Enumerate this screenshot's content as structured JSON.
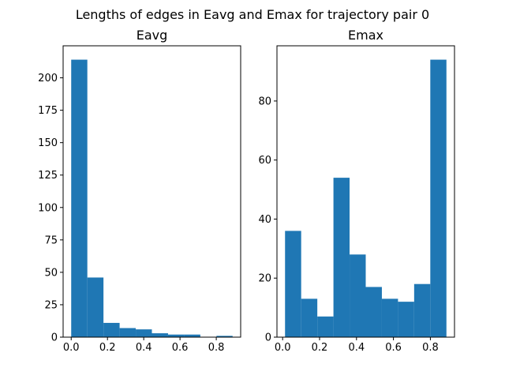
{
  "title": "Lengths of edges in Eavg and Emax for trajectory pair 0",
  "chart_data": [
    {
      "type": "histogram",
      "title": "Eavg",
      "color": "#1f77b4",
      "bins": [
        0,
        0.089,
        0.178,
        0.267,
        0.356,
        0.445,
        0.534,
        0.623,
        0.712,
        0.801,
        0.89
      ],
      "values": [
        214,
        46,
        11,
        7,
        6,
        3,
        2,
        2,
        0,
        1
      ],
      "xlim": [
        -0.0445,
        0.9345
      ],
      "xticks": [
        {
          "value": 0,
          "label": "0.0"
        },
        0.2,
        0.4,
        0.6,
        0.8
      ],
      "ylim": [
        0,
        224.7
      ],
      "yticks": [
        0,
        25,
        50,
        75,
        100,
        125,
        150,
        175,
        200
      ]
    },
    {
      "type": "histogram",
      "title": "Emax",
      "color": "#1f77b4",
      "bins": [
        0.013,
        0.1004,
        0.1878,
        0.2752,
        0.3626,
        0.45,
        0.5374,
        0.6248,
        0.7122,
        0.7996,
        0.887
      ],
      "values": [
        36,
        13,
        7,
        54,
        28,
        17,
        13,
        12,
        18,
        94
      ],
      "xlim": [
        -0.0307,
        0.9307
      ],
      "xticks": [
        {
          "value": 0,
          "label": "0.0"
        },
        0.2,
        0.4,
        0.6,
        0.8
      ],
      "ylim": [
        0,
        98.7
      ],
      "yticks": [
        0,
        20,
        40,
        60,
        80
      ]
    }
  ]
}
